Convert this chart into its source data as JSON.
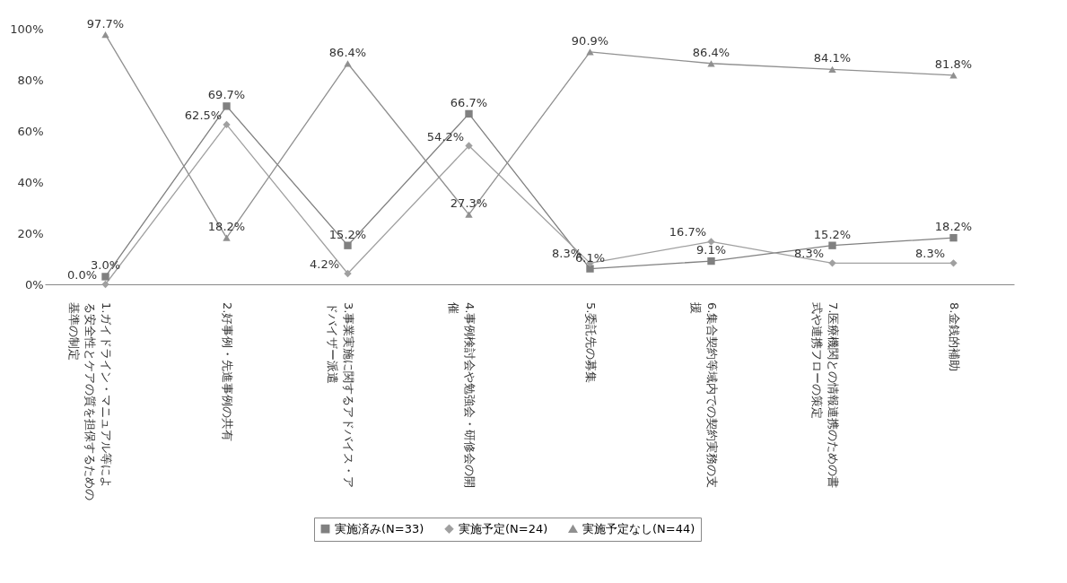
{
  "chart_data": {
    "type": "line",
    "categories": [
      "1.ガイドライン・マニュアル等による安全性とケアの質を担保するための基準の制定",
      "2.好事例・先進事例の共有",
      "3.事業実施に関するアドバイス・アドバイザー派遣",
      "4.事例検討会や勉強会・研修会の開催",
      "5.委託先の募集",
      "6.集合契約等域内での契約実務の支援",
      "7.医療機関との情報連携のための書式や連携フローの策定",
      "8.金銭的補助"
    ],
    "series": [
      {
        "name": "実施済み(N=33)",
        "color": "#808080",
        "marker": "square",
        "values": [
          3.0,
          69.7,
          15.2,
          66.7,
          6.1,
          9.1,
          15.2,
          18.2
        ],
        "value_labels": [
          "3.0%",
          "69.7%",
          "15.2%",
          "66.7%",
          "6.1%",
          "9.1%",
          "15.2%",
          "18.2%"
        ]
      },
      {
        "name": "実施予定(N=24)",
        "color": "#a0a0a0",
        "marker": "diamond",
        "values": [
          0.0,
          62.5,
          4.2,
          54.2,
          8.3,
          16.7,
          8.3,
          8.3
        ],
        "value_labels": [
          "0.0%",
          "62.5%",
          "4.2%",
          "54.2%",
          "8.3%",
          "16.7%",
          "8.3%",
          "8.3%"
        ]
      },
      {
        "name": "実施予定なし(N=44)",
        "color": "#909090",
        "marker": "triangle",
        "values": [
          97.7,
          18.2,
          86.4,
          27.3,
          90.9,
          86.4,
          84.1,
          81.8
        ],
        "value_labels": [
          "97.7%",
          "18.2%",
          "86.4%",
          "27.3%",
          "90.9%",
          "86.4%",
          "84.1%",
          "81.8%"
        ]
      }
    ],
    "ylim": [
      0,
      100
    ],
    "yticks": [
      {
        "value": 0,
        "label": "0%"
      },
      {
        "value": 20,
        "label": "20%"
      },
      {
        "value": 40,
        "label": "40%"
      },
      {
        "value": 60,
        "label": "60%"
      },
      {
        "value": 80,
        "label": "80%"
      },
      {
        "value": 100,
        "label": "100%"
      }
    ],
    "grid": false,
    "legend": "bottom",
    "line_style": "solid"
  }
}
